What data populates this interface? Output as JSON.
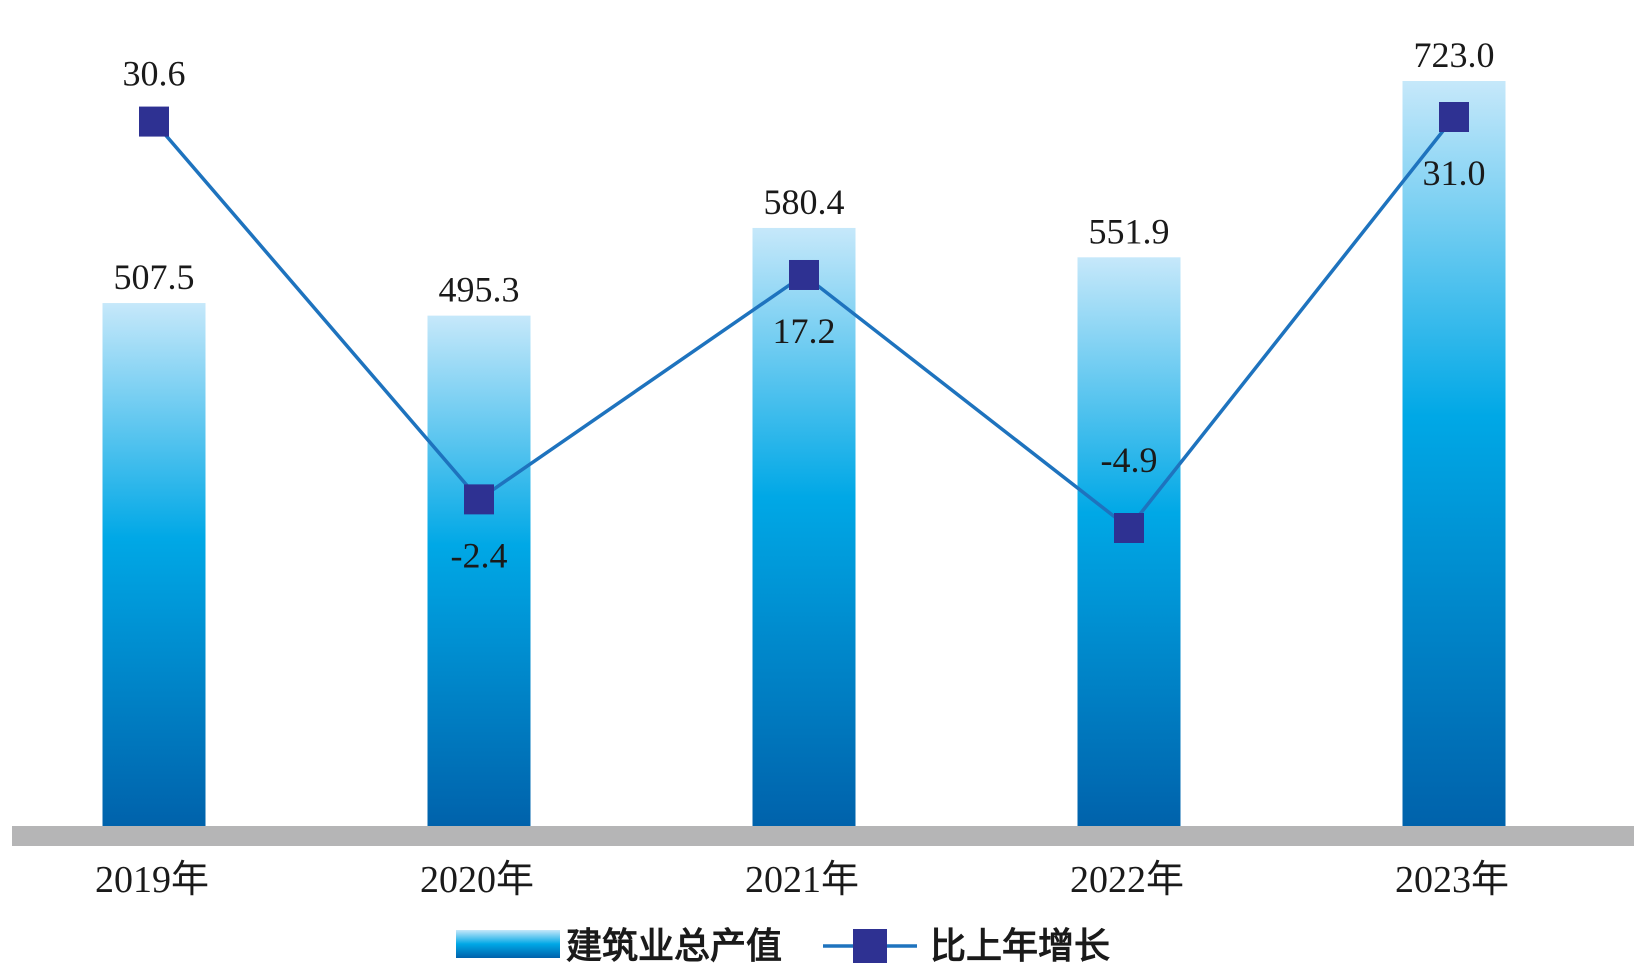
{
  "chart_data": {
    "type": "bar",
    "categories": [
      "2019年",
      "2020年",
      "2021年",
      "2022年",
      "2023年"
    ],
    "series": [
      {
        "name": "建筑业总产值",
        "type": "bar",
        "values": [
          507.5,
          495.3,
          580.4,
          551.9,
          723.0
        ],
        "labels": [
          "507.5",
          "495.3",
          "580.4",
          "551.9",
          "723.0"
        ]
      },
      {
        "name": "比上年增长",
        "type": "line",
        "values": [
          30.6,
          -2.4,
          17.2,
          -4.9,
          31.0
        ],
        "labels": [
          "30.6",
          "-2.4",
          "17.2",
          "-4.9",
          "31.0"
        ]
      }
    ],
    "bar_ylim": [
      0,
      760
    ],
    "line_ylim": [
      -17,
      35
    ],
    "legend_position": "bottom-center",
    "grid": false,
    "colors": {
      "bar_top": "#c6e8fa",
      "bar_mid": "#00a8e6",
      "bar_bottom": "#0062ab",
      "line": "#1e73be",
      "marker": "#2e3192",
      "axis": "#b5b5b6"
    }
  }
}
